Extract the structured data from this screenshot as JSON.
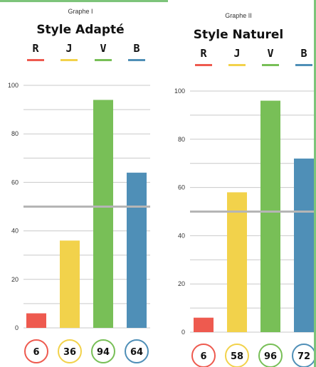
{
  "chart_data": [
    {
      "type": "bar",
      "graph_label": "Graphe I",
      "title": "Style Adapté",
      "categories": [
        "R",
        "J",
        "V",
        "B"
      ],
      "values": [
        6,
        36,
        94,
        64
      ],
      "value_labels": [
        "6",
        "36",
        "94",
        "64"
      ],
      "colors": [
        "#ee5a4f",
        "#f2d24b",
        "#78bf57",
        "#4f8fb7"
      ],
      "ylim": [
        0,
        100
      ],
      "yticks": [
        0,
        20,
        40,
        60,
        80,
        100
      ],
      "reference_line": 50,
      "grid": true,
      "xlabel": "",
      "ylabel": ""
    },
    {
      "type": "bar",
      "graph_label": "Graphe II",
      "title": "Style Naturel",
      "categories": [
        "R",
        "J",
        "V",
        "B"
      ],
      "values": [
        6,
        58,
        96,
        72
      ],
      "value_labels": [
        "6",
        "58",
        "96",
        "72"
      ],
      "colors": [
        "#ee5a4f",
        "#f2d24b",
        "#78bf57",
        "#4f8fb7"
      ],
      "ylim": [
        0,
        100
      ],
      "yticks": [
        0,
        20,
        40,
        60,
        80,
        100
      ],
      "reference_line": 50,
      "grid": true,
      "xlabel": "",
      "ylabel": ""
    }
  ]
}
